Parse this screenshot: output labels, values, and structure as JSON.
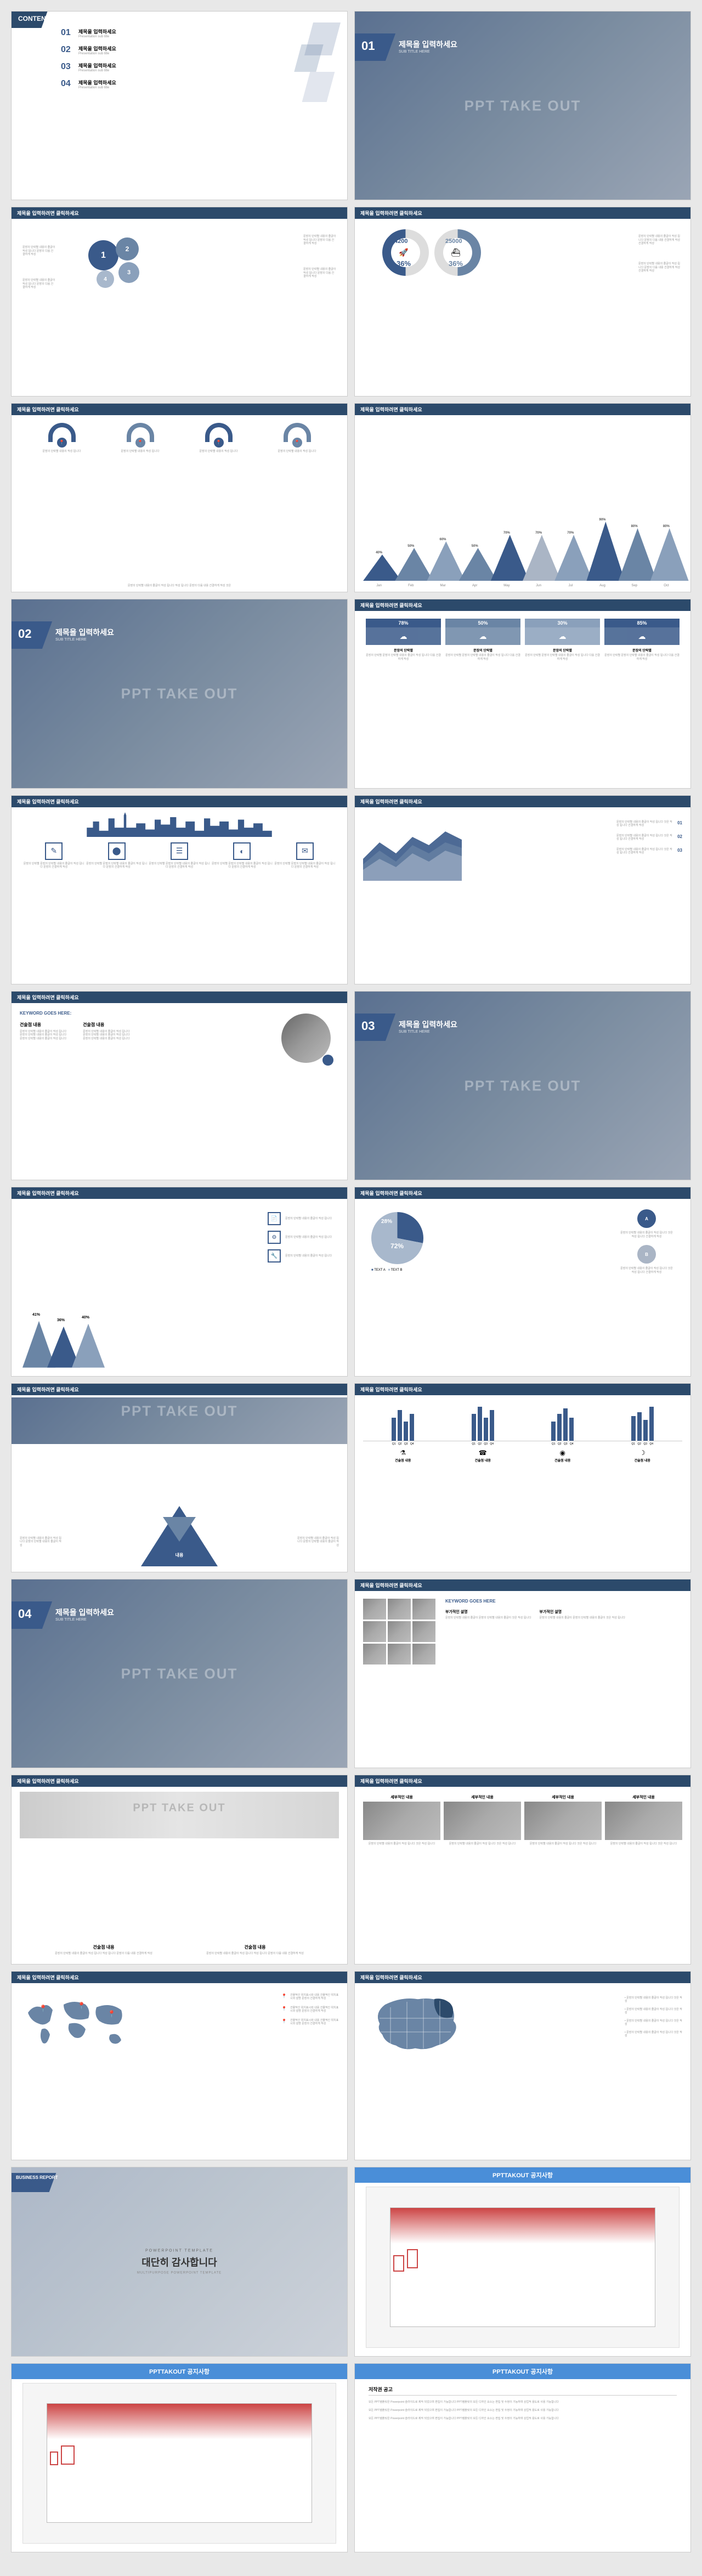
{
  "watermark": "PPT TAKE OUT",
  "colors": {
    "primary": "#3a5a8a",
    "secondary": "#6a85a5",
    "accent": "#2c4a6b",
    "light": "#a8b8cc",
    "bg": "#ffffff",
    "text": "#333333",
    "muted": "#888888"
  },
  "slide1": {
    "title": "CONTENT",
    "items": [
      {
        "num": "01",
        "label": "제목을 입력하세요",
        "sub": "Presentation sub title"
      },
      {
        "num": "02",
        "label": "제목을 입력하세요",
        "sub": "Presentation sub title"
      },
      {
        "num": "03",
        "label": "제목을 입력하세요",
        "sub": "Presentation sub title"
      },
      {
        "num": "04",
        "label": "제목을 입력하세요",
        "sub": "Presentation sub title"
      }
    ]
  },
  "slide2": {
    "num": "01",
    "title": "제목을 입력하세요",
    "sub": "SUB TITLE HERE"
  },
  "slide3": {
    "header": "제목을 입력하려면 클릭하세요",
    "circles": [
      {
        "num": "1",
        "color": "#3a5a8a",
        "size": 50
      },
      {
        "num": "2",
        "color": "#6a85a5",
        "size": 40
      },
      {
        "num": "3",
        "color": "#8aa0bb",
        "size": 35
      },
      {
        "num": "4",
        "color": "#a8b8cc",
        "size": 30
      }
    ],
    "desc": "문장의 단락별 내용의 줄글이\n작성 됩니다 문장의 다음\n건결하게 작성"
  },
  "slide4": {
    "header": "제목을 입력하려면 클릭하세요",
    "left": {
      "value": "4200",
      "pct": "36%",
      "color": "#3a5a8a"
    },
    "right": {
      "value": "25000",
      "pct": "36%",
      "color": "#6a85a5"
    },
    "desc": "문장의 단락별 내용의 줄글이 작성 됩니다\n문장의 다음 내용 건결하게 작성\n건결하게 작성"
  },
  "slide5": {
    "header": "제목을 입력하려면 클릭하세요",
    "cols": [
      "1",
      "2",
      "3",
      "4"
    ],
    "col_labels": [
      "문장의 단락별 내용의\n작성 됩니다",
      "문장의 단락별 내용의\n작성 됩니다",
      "문장의 단락별 내용의\n작성 됩니다",
      "문장의 단락별 내용의\n작성 됩니다"
    ],
    "desc": "문장의 단락별 내용의 줄글이 작성 됩니다 작성 됩니다 문장의 다음 내용 건결하게 작성 것은\n건결하게 작성",
    "footer": "문장의 단락별 내용의 줄글이 작성 됩니다 작성 됩니다 문장의 다음 내용 건결하게 작성 것은"
  },
  "slide6": {
    "header": "제목을 입력하려면 클릭하세요",
    "months": [
      "Jan",
      "Feb",
      "Mar",
      "Apr",
      "May",
      "Jun",
      "Jul",
      "Aug",
      "Sep",
      "Oct"
    ],
    "values": [
      40,
      50,
      60,
      50,
      70,
      70,
      70,
      90,
      80,
      80
    ],
    "colors": [
      "#3a5a8a",
      "#6a85a5",
      "#8aa0bb",
      "#6a85a5",
      "#3a5a8a",
      "#aab5c5",
      "#8aa0bb",
      "#3a5a8a",
      "#6a85a5",
      "#8aa0bb"
    ]
  },
  "slide7": {
    "num": "02",
    "title": "제목을 입력하세요",
    "sub": "SUB TITLE HERE"
  },
  "slide8": {
    "header": "제목을 입력하려면 클릭하세요",
    "boxes": [
      {
        "pct": "78%",
        "color": "#3a5a8a"
      },
      {
        "pct": "50%",
        "color": "#6a85a5"
      },
      {
        "pct": "30%",
        "color": "#8aa0bb"
      },
      {
        "pct": "85%",
        "color": "#3a5a8a"
      }
    ],
    "desc": "문장의 단락별\n문장의 단락별 내용의 줄글이\n작성 됩니다 다음\n건결하게 작성"
  },
  "slide9": {
    "header": "제목을 입력하려면 클릭하세요",
    "icons": [
      "✎",
      "⬤",
      "☰",
      "◐",
      "✉"
    ],
    "desc": "문장의 단락별\n문장의 단락별 내용의\n줄글이 작성\n됩니다 문장의\n건결하게 작성"
  },
  "slide10": {
    "header": "제목을 입력하려면 클릭하세요",
    "list": [
      {
        "num": "01",
        "text": "문장의 단락별 내용의 줄글이 작성 됩니다 것은\n작성 됩니다 건결하게 작성"
      },
      {
        "num": "02",
        "text": "문장의 단락별 내용의 줄글이 작성 됩니다 것은\n작성 됩니다 건결하게 작성"
      },
      {
        "num": "03",
        "text": "문장의 단락별 내용의 줄글이 작성 됩니다 것은\n작성 됩니다 건결하게 작성"
      }
    ]
  },
  "slide11": {
    "header": "제목을 입력하려면 클릭하세요",
    "kw_label": "KEYWORD GOES HERE:",
    "col1_title": "건술점 내용",
    "col2_title": "건술점 내용",
    "bullets": [
      "문장의 단락별 내용의 줄글이 작성 됩니다",
      "문장의 단락별 내용의 줄글이 작성 됩니다",
      "문장의 단락별 내용의 줄글이 작성 됩니다"
    ]
  },
  "slide12": {
    "num": "03",
    "title": "제목을 입력하세요",
    "sub": "SUB TITLE HERE"
  },
  "slide13": {
    "header": "제목을 입력하려면 클릭하세요",
    "peaks": [
      {
        "pct": "41%",
        "h": 45,
        "color": "#6a85a5"
      },
      {
        "pct": "36%",
        "h": 40,
        "color": "#3a5a8a"
      },
      {
        "pct": "40%",
        "h": 42,
        "color": "#8aa0bb"
      }
    ],
    "rows": [
      {
        "icon": "📄",
        "text": "문장의 단락별 내용의 줄글이 작성 됩니다"
      },
      {
        "icon": "⚙",
        "text": "문장의 단락별 내용의 줄글이 작성 됩니다"
      },
      {
        "icon": "🔧",
        "text": "문장의 단락별 내용의 줄글이 작성 됩니다"
      }
    ]
  },
  "slide14": {
    "header": "제목을 입력하려면 클릭하세요",
    "pie": {
      "a": 28,
      "b": 72,
      "a_label": "28%",
      "b_label": "72%",
      "a_color": "#3a5a8a",
      "b_color": "#a8b8cc"
    },
    "legend": [
      "TEXT A",
      "TEXT B"
    ],
    "nodes": [
      "A",
      "B"
    ],
    "desc": "문장의 단락별 내용의 줄글이 작성 됩니다 것은\n작성 됩니다 건결하게 작성"
  },
  "slide15": {
    "header": "제목을 입력하려면 클릭하세요",
    "tri_label": "내용",
    "desc": "문장의 단락별 내용의 줄글이 작성 됩니다\n문장의 단락별 내용의 줄글이 작성"
  },
  "slide16": {
    "header": "제목을 입력하려면 클릭하세요",
    "quarters": [
      "Q1",
      "Q2",
      "Q3",
      "Q4"
    ],
    "groups": [
      {
        "label": "건술점 내용",
        "icon": "⚗",
        "bars": [
          60,
          80,
          50,
          70
        ]
      },
      {
        "label": "건술점 내용",
        "icon": "☎",
        "bars": [
          70,
          90,
          60,
          80
        ]
      },
      {
        "label": "건술점 내용",
        "icon": "◉",
        "bars": [
          50,
          70,
          85,
          60
        ]
      },
      {
        "label": "건술점 내용",
        "icon": "☽",
        "bars": [
          65,
          75,
          55,
          90
        ]
      }
    ],
    "bar_color": "#3a5a8a"
  },
  "slide17": {
    "num": "04",
    "title": "제목을 입력하세요",
    "sub": "SUB TITLE HERE"
  },
  "slide18": {
    "header": "제목을 입력하려면 클릭하세요",
    "kw": "KEYWORD GOES HERE",
    "sub1": "부가적인 설명",
    "sub2": "부가적인 설명",
    "desc": "문장의 단락별 내용의 줄글이\n문장의 단락별 내용의 줄글이 것은\n작성 됩니다"
  },
  "slide19": {
    "header": "제목을 입력하려면 클릭하세요",
    "col1": "건술점 내용",
    "col2": "건술점 내용",
    "desc": "문장의 단락별 내용의 줄글이 작성 됩니다 작성 됩니다 문장의 다음 내용 건결하게 작성"
  },
  "slide20": {
    "header": "제목을 입력하려면 클릭하세요",
    "cols": [
      "세부적인 내용",
      "세부적인 내용",
      "세부적인 내용",
      "세부적인 내용"
    ],
    "desc": "문장의 단락별 내용의\n줄글이 작성 됩니다 것은\n작성 됩니다"
  },
  "slide21": {
    "header": "제목을 입력하려면 클릭하세요",
    "markers": [
      "📍",
      "📍",
      "📍"
    ],
    "rows": [
      {
        "text": "건물적인 위치표시와 내용\n건물적인 위치표시와 설명 문장의 건결하게 작성"
      },
      {
        "text": "건물적인 위치표시와 내용\n건물적인 위치표시와 설명 문장의 건결하게 작성"
      },
      {
        "text": "건물적인 위치표시와 내용\n건물적인 위치표시와 설명 문장의 건결하게 작성"
      }
    ]
  },
  "slide22": {
    "header": "제목을 입력하려면 클릭하세요",
    "list": [
      "문장의 단락별 내용의 줄글이 작성 됩니다 것은 작성",
      "문장의 단락별 내용의 줄글이 작성 됩니다 것은 작성",
      "문장의 단락별 내용의 줄글이 작성 됩니다 것은 작성",
      "문장의 단락별 내용의 줄글이 작성 됩니다 것은 작성"
    ]
  },
  "slide23": {
    "badge": "BUSINESS REPORT",
    "top": "POWERPOINT TEMPLATE",
    "title": "대단히 감사합니다",
    "sub": "MULTIPURPOSE POWERPOINT TEMPLATE"
  },
  "slide24": {
    "header": "PPTTAKOUT 공지사항"
  },
  "slide25": {
    "header": "PPTTAKOUT 공지사항"
  },
  "slide26": {
    "header": "PPTTAKOUT 공지사항",
    "title": "저작권 공고",
    "body": "모든 PPT템플릿은 Powerpoint 슬라이드로 제작 되었으며 편집이 가능합니다 PPT템플릿의 모든 디자인 요소는 편집 및 수정이 가능하며 상업적 용도로 사용 가능합니다"
  }
}
